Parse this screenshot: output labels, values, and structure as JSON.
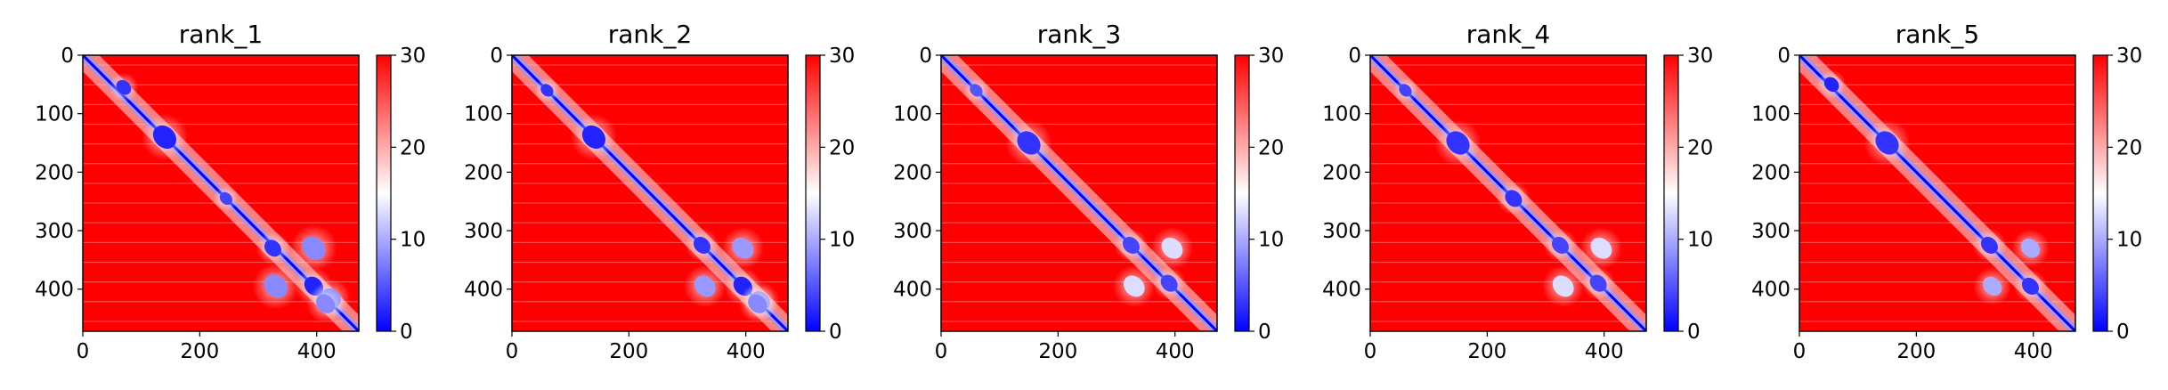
{
  "chart_data": {
    "type": "heatmap",
    "colormap": {
      "name": "bwr",
      "low": "#0000ff",
      "mid": "#ffffff",
      "high": "#ff0000"
    },
    "vmin": 0,
    "vmax": 30,
    "colorbar_ticks": [
      "0",
      "10",
      "20",
      "30"
    ],
    "x_ticks": [
      "0",
      "200",
      "400"
    ],
    "y_ticks": [
      "0",
      "100",
      "200",
      "300",
      "400"
    ],
    "xlim": [
      0,
      472
    ],
    "ylim": [
      472,
      0
    ],
    "grid": false,
    "panels": [
      {
        "title": "rank_1",
        "features": [
          {
            "x": 70,
            "y": 55,
            "value": 3,
            "size": 14
          },
          {
            "x": 140,
            "y": 140,
            "value": 2,
            "size": 22
          },
          {
            "x": 245,
            "y": 245,
            "value": 4,
            "size": 12
          },
          {
            "x": 325,
            "y": 330,
            "value": 3,
            "size": 16
          },
          {
            "x": 395,
            "y": 395,
            "value": 2,
            "size": 18
          },
          {
            "x": 330,
            "y": 395,
            "value": 8,
            "size": 22
          },
          {
            "x": 395,
            "y": 330,
            "value": 8,
            "size": 22
          },
          {
            "x": 425,
            "y": 415,
            "value": 8,
            "size": 18
          },
          {
            "x": 415,
            "y": 425,
            "value": 8,
            "size": 18
          }
        ]
      },
      {
        "title": "rank_2",
        "features": [
          {
            "x": 60,
            "y": 60,
            "value": 3,
            "size": 12
          },
          {
            "x": 140,
            "y": 140,
            "value": 2,
            "size": 22
          },
          {
            "x": 325,
            "y": 325,
            "value": 3,
            "size": 16
          },
          {
            "x": 395,
            "y": 395,
            "value": 2,
            "size": 18
          },
          {
            "x": 330,
            "y": 395,
            "value": 9,
            "size": 20
          },
          {
            "x": 395,
            "y": 330,
            "value": 9,
            "size": 20
          },
          {
            "x": 425,
            "y": 420,
            "value": 8,
            "size": 18
          },
          {
            "x": 420,
            "y": 425,
            "value": 8,
            "size": 18
          }
        ]
      },
      {
        "title": "rank_3",
        "features": [
          {
            "x": 60,
            "y": 60,
            "value": 5,
            "size": 12
          },
          {
            "x": 150,
            "y": 150,
            "value": 3,
            "size": 22
          },
          {
            "x": 325,
            "y": 325,
            "value": 4,
            "size": 16
          },
          {
            "x": 390,
            "y": 390,
            "value": 4,
            "size": 16
          },
          {
            "x": 330,
            "y": 395,
            "value": 13,
            "size": 20
          },
          {
            "x": 395,
            "y": 330,
            "value": 13,
            "size": 20
          }
        ]
      },
      {
        "title": "rank_4",
        "features": [
          {
            "x": 60,
            "y": 60,
            "value": 4,
            "size": 12
          },
          {
            "x": 150,
            "y": 150,
            "value": 3,
            "size": 22
          },
          {
            "x": 245,
            "y": 245,
            "value": 3,
            "size": 16
          },
          {
            "x": 325,
            "y": 325,
            "value": 4,
            "size": 16
          },
          {
            "x": 390,
            "y": 390,
            "value": 4,
            "size": 16
          },
          {
            "x": 330,
            "y": 395,
            "value": 13,
            "size": 20
          },
          {
            "x": 395,
            "y": 330,
            "value": 13,
            "size": 20
          }
        ]
      },
      {
        "title": "rank_5",
        "features": [
          {
            "x": 55,
            "y": 50,
            "value": 2,
            "size": 14
          },
          {
            "x": 150,
            "y": 150,
            "value": 3,
            "size": 22
          },
          {
            "x": 325,
            "y": 325,
            "value": 3,
            "size": 16
          },
          {
            "x": 395,
            "y": 395,
            "value": 3,
            "size": 16
          },
          {
            "x": 330,
            "y": 395,
            "value": 10,
            "size": 18
          },
          {
            "x": 395,
            "y": 330,
            "value": 10,
            "size": 18
          }
        ]
      }
    ]
  }
}
